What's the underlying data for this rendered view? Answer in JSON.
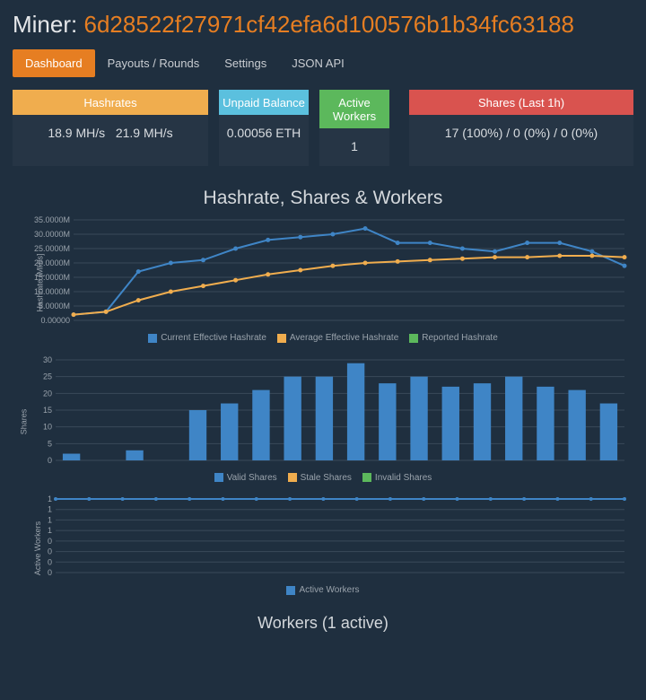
{
  "header": {
    "label": "Miner:",
    "address": "6d28522f27971cf42efa6d100576b1b34fc63188"
  },
  "tabs": [
    {
      "label": "Dashboard",
      "active": true
    },
    {
      "label": "Payouts / Rounds",
      "active": false
    },
    {
      "label": "Settings",
      "active": false
    },
    {
      "label": "JSON API",
      "active": false
    }
  ],
  "cards": {
    "hashrates": {
      "title": "Hashrates",
      "val1": "18.9 MH/s",
      "val2": "21.9 MH/s"
    },
    "balance": {
      "title": "Unpaid Balance",
      "value": "0.00056 ETH"
    },
    "active": {
      "title": "Active Workers",
      "value": "1"
    },
    "shares": {
      "title": "Shares (Last 1h)",
      "value": "17 (100%) / 0 (0%) / 0 (0%)"
    }
  },
  "chart_section_title": "Hashrate, Shares & Workers",
  "colors": {
    "line_current": "#3f85c6",
    "line_average": "#f0ad4e",
    "line_reported": "#5cb85c",
    "bar_valid": "#3f85c6",
    "bar_stale": "#f0ad4e",
    "bar_invalid": "#5cb85c",
    "grid": "#3a4a5a",
    "axis_text": "#9aa3ac"
  },
  "hashrate_chart": {
    "ylabel": "Hashrate [MH/s]",
    "ylim": [
      0,
      35
    ],
    "ytick_step": 5,
    "ytick_labels": [
      "0.00000",
      "5.0000M",
      "10.0000M",
      "15.0000M",
      "20.0000M",
      "25.0000M",
      "30.0000M",
      "35.0000M"
    ],
    "n_points": 18,
    "series": {
      "current": [
        2,
        3,
        17,
        20,
        21,
        25,
        28,
        29,
        30,
        32,
        27,
        27,
        25,
        24,
        27,
        27,
        24,
        19
      ],
      "average": [
        2,
        3,
        7,
        10,
        12,
        14,
        16,
        17.5,
        19,
        20,
        20.5,
        21,
        21.5,
        22,
        22,
        22.5,
        22.5,
        22
      ]
    },
    "legend": [
      {
        "label": "Current Effective Hashrate",
        "color": "#3f85c6"
      },
      {
        "label": "Average Effective Hashrate",
        "color": "#f0ad4e"
      },
      {
        "label": "Reported Hashrate",
        "color": "#5cb85c"
      }
    ]
  },
  "shares_chart": {
    "ylabel": "Shares",
    "ylim": [
      0,
      30
    ],
    "ytick_step": 5,
    "n_points": 18,
    "values": [
      2,
      0,
      3,
      0,
      15,
      17,
      21,
      25,
      25,
      29,
      23,
      25,
      22,
      23,
      25,
      22,
      21,
      17
    ],
    "legend": [
      {
        "label": "Valid Shares",
        "color": "#3f85c6"
      },
      {
        "label": "Stale Shares",
        "color": "#f0ad4e"
      },
      {
        "label": "Invalid Shares",
        "color": "#5cb85c"
      }
    ]
  },
  "workers_chart": {
    "ylabel": "Active Workers",
    "ylim": [
      0,
      1
    ],
    "ytick_labels": [
      "0",
      "0",
      "0",
      "0",
      "1",
      "1",
      "1",
      "1"
    ],
    "n_points": 18,
    "values": [
      1,
      1,
      1,
      1,
      1,
      1,
      1,
      1,
      1,
      1,
      1,
      1,
      1,
      1,
      1,
      1,
      1,
      1
    ],
    "legend": [
      {
        "label": "Active Workers",
        "color": "#3f85c6"
      }
    ]
  },
  "workers_title": "Workers (1 active)"
}
